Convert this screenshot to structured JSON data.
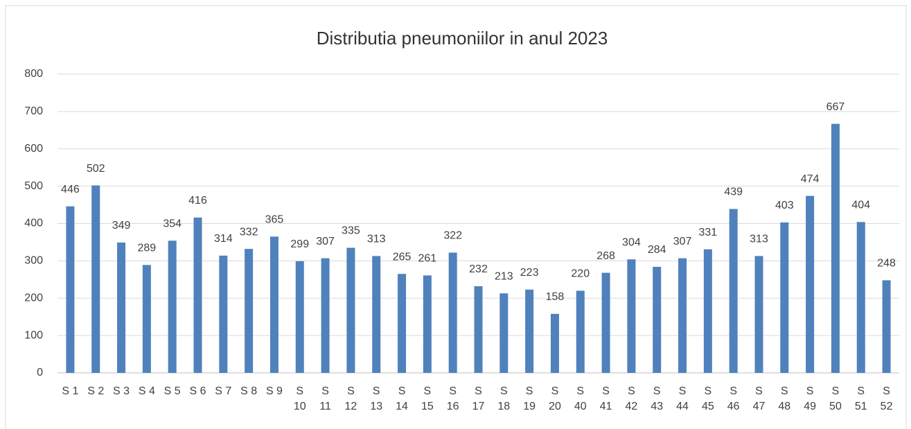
{
  "chart_data": {
    "type": "bar",
    "title": "Distributia pneumoniilor  in anul 2023",
    "categories": [
      "S 1",
      "S 2",
      "S 3",
      "S 4",
      "S 5",
      "S 6",
      "S 7",
      "S 8",
      "S 9",
      "S 10",
      "S 11",
      "S 12",
      "S 13",
      "S 14",
      "S 15",
      "S 16",
      "S 17",
      "S 18",
      "S 19",
      "S 20",
      "S 40",
      "S 41",
      "S 42",
      "S 43",
      "S 44",
      "S 45",
      "S 46",
      "S 47",
      "S 48",
      "S 49",
      "S 50",
      "S 51",
      "S 52"
    ],
    "values": [
      446,
      502,
      349,
      289,
      354,
      416,
      314,
      332,
      365,
      299,
      307,
      335,
      313,
      265,
      261,
      322,
      232,
      213,
      223,
      158,
      220,
      268,
      304,
      284,
      307,
      331,
      439,
      313,
      403,
      474,
      667,
      404,
      248
    ],
    "color": "#4f81bd",
    "ylim": [
      0,
      800
    ],
    "yticks": [
      0,
      100,
      200,
      300,
      400,
      500,
      600,
      700,
      800
    ],
    "grid": true
  }
}
